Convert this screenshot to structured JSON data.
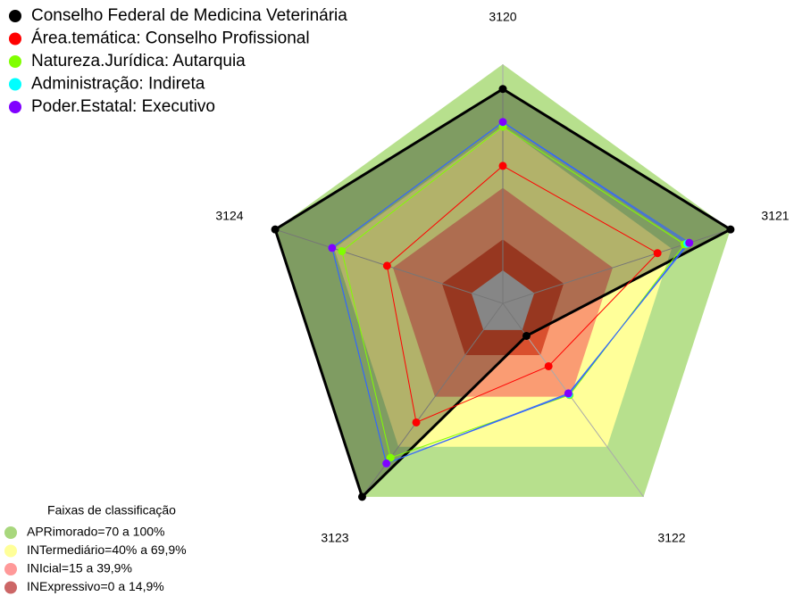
{
  "chart_data": {
    "type": "radar",
    "categories": [
      "3120",
      "3121",
      "3122",
      "3123",
      "3124"
    ],
    "rlim": [
      -16,
      100
    ],
    "series": [
      {
        "name": "Conselho Federal de Medicina Veterinária",
        "color": "#000000",
        "values": [
          88,
          100,
          3.5,
          100,
          100
        ]
      },
      {
        "name": "Área.temática: Conselho Profissional",
        "color": "#ff0000",
        "values": [
          50.7,
          62.8,
          21.7,
          55.4,
          43
        ]
      },
      {
        "name": "Natureza.Jurídica: Autarquia",
        "color": "#80ff00",
        "values": [
          69.7,
          76.6,
          39,
          76.6,
          66
        ]
      },
      {
        "name": "Administração: Indireta",
        "color": "#00ffff",
        "values": [
          71.9,
          78,
          38.5,
          80,
          71
        ]
      },
      {
        "name": "Poder.Estatal: Executivo",
        "color": "#8000ff",
        "values": [
          72,
          79,
          38,
          80,
          71
        ]
      }
    ],
    "bands": {
      "title": "Faixas de classificação",
      "items": [
        {
          "label": "APRimorado=70 a 100%",
          "min": 70,
          "color": "#b7e08d",
          "legend_color": "#a8d77d"
        },
        {
          "label": "INTermediário=40% a 69,9%",
          "min": 40,
          "color": "#ffff99",
          "legend_color": "#ffff99"
        },
        {
          "label": "INIcial=15 a 39,9%",
          "min": 15,
          "color": "#fa9c73",
          "legend_color": "#ff9999"
        },
        {
          "label": "INExpressivo=0 a 14,9%",
          "min": 0,
          "color": "#d9502e",
          "legend_color": "#cc6666"
        }
      ]
    }
  }
}
